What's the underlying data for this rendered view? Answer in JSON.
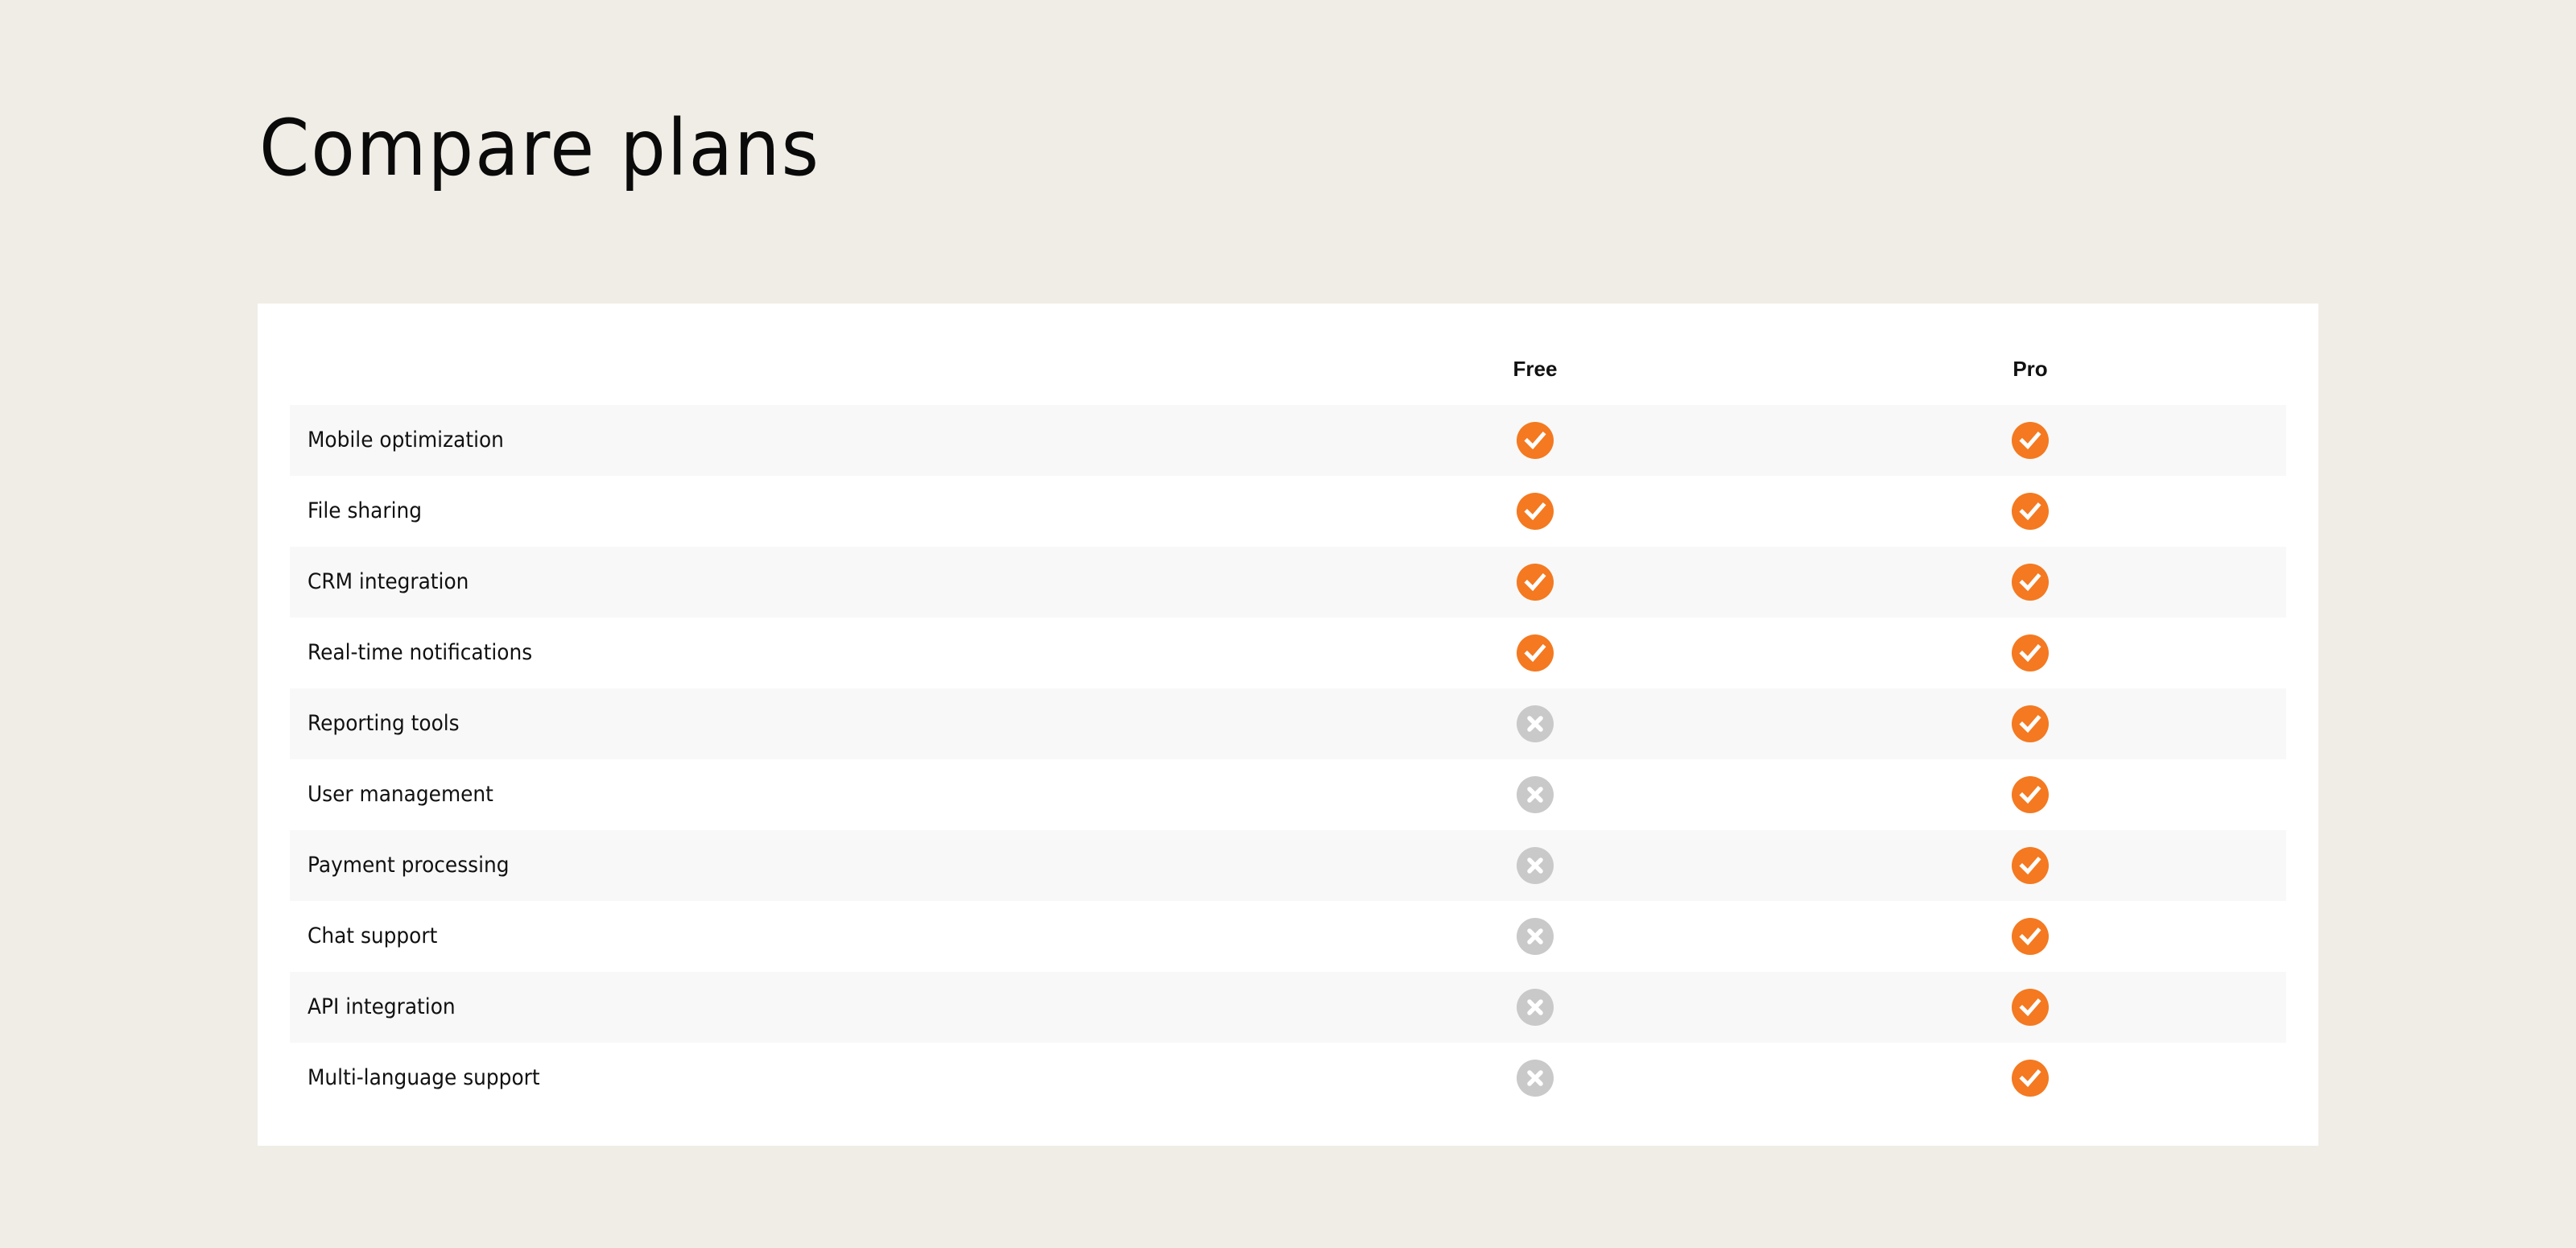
{
  "page": {
    "title": "Compare plans"
  },
  "colors": {
    "background": "#f0ede6",
    "included": "#f47920",
    "excluded": "#c9c9c9",
    "row_alt": "#f8f8f8"
  },
  "table": {
    "columns": [
      "Free",
      "Pro"
    ],
    "rows": [
      {
        "feature": "Mobile optimization",
        "free": true,
        "pro": true
      },
      {
        "feature": "File sharing",
        "free": true,
        "pro": true
      },
      {
        "feature": "CRM integration",
        "free": true,
        "pro": true
      },
      {
        "feature": "Real-time notifications",
        "free": true,
        "pro": true
      },
      {
        "feature": "Reporting tools",
        "free": false,
        "pro": true
      },
      {
        "feature": "User management",
        "free": false,
        "pro": true
      },
      {
        "feature": "Payment processing",
        "free": false,
        "pro": true
      },
      {
        "feature": "Chat support",
        "free": false,
        "pro": true
      },
      {
        "feature": "API integration",
        "free": false,
        "pro": true
      },
      {
        "feature": "Multi-language support",
        "free": false,
        "pro": true
      }
    ]
  }
}
